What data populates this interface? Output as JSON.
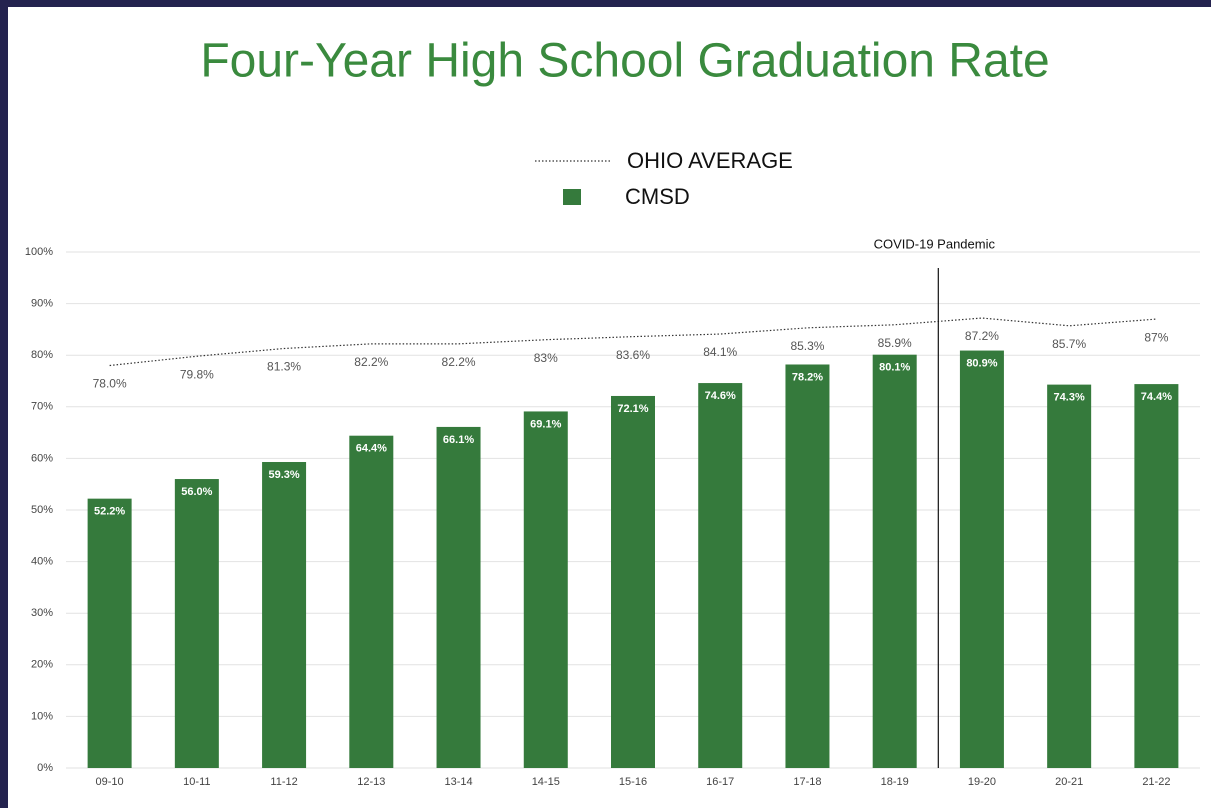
{
  "chart_data": {
    "type": "bar",
    "title": "Four-Year High School Graduation Rate",
    "categories": [
      "09-10",
      "10-11",
      "11-12",
      "12-13",
      "13-14",
      "14-15",
      "15-16",
      "16-17",
      "17-18",
      "18-19",
      "19-20",
      "20-21",
      "21-22"
    ],
    "series": [
      {
        "name": "OHIO AVERAGE",
        "type": "line",
        "color": "#333333",
        "values": [
          78.0,
          79.8,
          81.3,
          82.2,
          82.2,
          83,
          83.6,
          84.1,
          85.3,
          85.9,
          87.2,
          85.7,
          87
        ],
        "value_labels": [
          "78.0%",
          "79.8%",
          "81.3%",
          "82.2%",
          "82.2%",
          "83%",
          "83.6%",
          "84.1%",
          "85.3%",
          "85.9%",
          "87.2%",
          "85.7%",
          "87%"
        ]
      },
      {
        "name": "CMSD",
        "type": "bar",
        "color": "#357a3c",
        "values": [
          52.2,
          56.0,
          59.3,
          64.4,
          66.1,
          69.1,
          72.1,
          74.6,
          78.2,
          80.1,
          80.9,
          74.3,
          74.4
        ],
        "value_labels": [
          "52.2%",
          "56.0%",
          "59.3%",
          "64.4%",
          "66.1%",
          "69.1%",
          "72.1%",
          "74.6%",
          "78.2%",
          "80.1%",
          "80.9%",
          "74.3%",
          "74.4%"
        ]
      }
    ],
    "annotation": "COVID-19 Pandemic",
    "ylim": [
      0,
      100
    ],
    "yticks": [
      {
        "value": 0,
        "label": "0%"
      },
      {
        "value": 10,
        "label": "10%"
      },
      {
        "value": 20,
        "label": "20%"
      },
      {
        "value": 30,
        "label": "30%"
      },
      {
        "value": 40,
        "label": "40%"
      },
      {
        "value": 50,
        "label": "50%"
      },
      {
        "value": 60,
        "label": "60%"
      },
      {
        "value": 70,
        "label": "70%"
      },
      {
        "value": 80,
        "label": "80%"
      },
      {
        "value": 90,
        "label": "90%"
      },
      {
        "value": 100,
        "label": "100%"
      }
    ],
    "grid": true
  }
}
